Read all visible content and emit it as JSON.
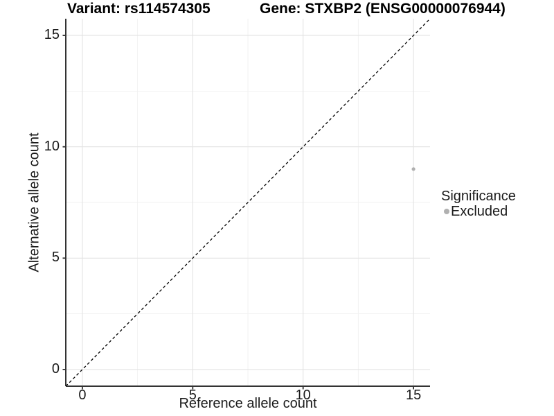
{
  "figure": {
    "title_left": "Variant: rs114574305",
    "title_right": "Gene: STXBP2 (ENSG00000076944)"
  },
  "chart_data": {
    "type": "scatter",
    "title": "Variant: rs114574305 — Gene: STXBP2 (ENSG00000076944)",
    "xlabel": "Reference allele count",
    "ylabel": "Alternative allele count",
    "xlim": [
      -0.75,
      15.75
    ],
    "ylim": [
      -0.75,
      15.75
    ],
    "x_ticks": [
      0,
      5,
      10,
      15
    ],
    "y_ticks": [
      0,
      5,
      10,
      15
    ],
    "x_minor_ticks": [
      2.5,
      7.5,
      12.5
    ],
    "y_minor_ticks": [
      2.5,
      7.5,
      12.5
    ],
    "grid": "major_and_minor",
    "identity_line": {
      "style": "dashed",
      "color": "#000000",
      "from": [
        -0.75,
        -0.75
      ],
      "to": [
        15.75,
        15.75
      ]
    },
    "series": [
      {
        "name": "Excluded",
        "color": "#b0b0b0",
        "marker": "circle",
        "points": [
          [
            15,
            9
          ]
        ]
      }
    ],
    "legend": {
      "title": "Significance",
      "position": "right",
      "entries": [
        {
          "label": "Excluded",
          "color": "#b0b0b0",
          "marker": "circle"
        }
      ]
    }
  },
  "style": {
    "background_color": "#ffffff",
    "axis_line_color": "#333333",
    "grid_major_color": "#e3e3e3",
    "grid_minor_color": "#f1f1f1",
    "tick_mark_color": "#333333",
    "text_color": "#1a1a1a"
  }
}
